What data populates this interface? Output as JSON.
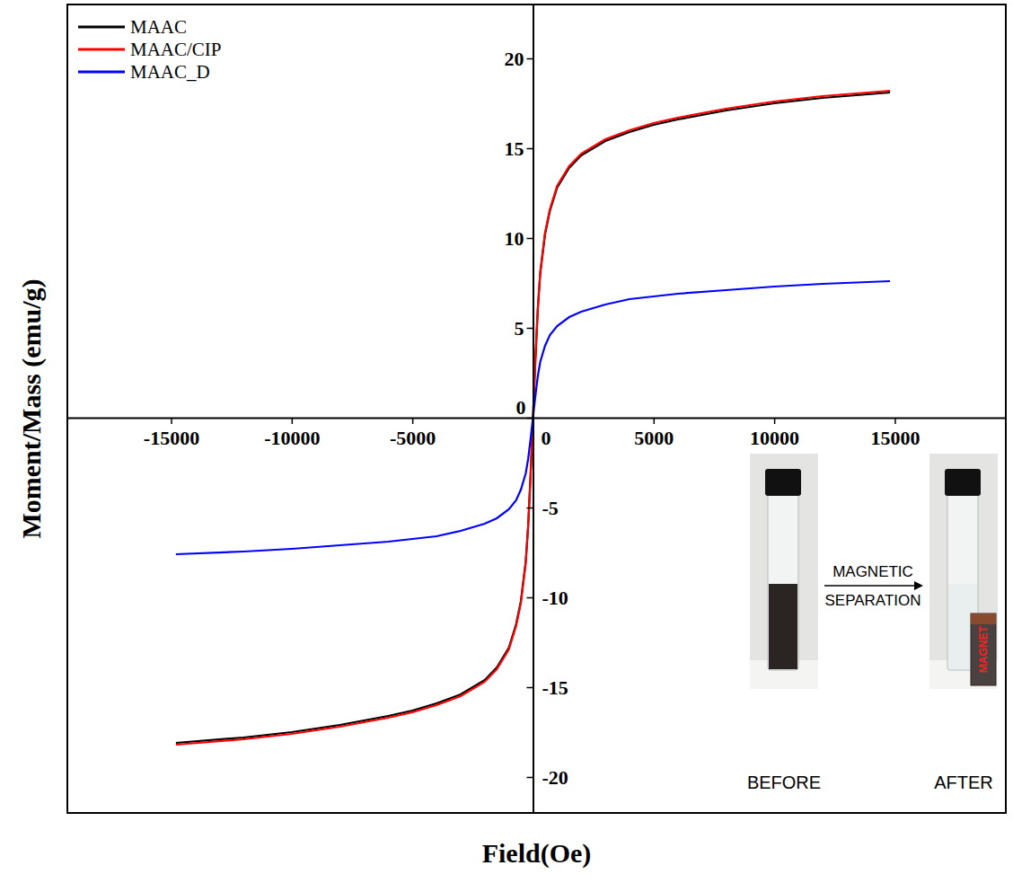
{
  "chart_data": {
    "type": "line",
    "x_label": "Field(Oe)",
    "y_label": "Moment/Mass (emu/g)",
    "x": [
      -14800,
      -12000,
      -10000,
      -8000,
      -6000,
      -5000,
      -4000,
      -3000,
      -2000,
      -1500,
      -1000,
      -700,
      -500,
      -300,
      -200,
      -100,
      0,
      100,
      200,
      300,
      500,
      700,
      1000,
      1500,
      2000,
      3000,
      4000,
      5000,
      6000,
      8000,
      10000,
      12000,
      14800
    ],
    "series": [
      {
        "name": "MAAC",
        "color": "#000000",
        "values": [
          -18.1,
          -17.8,
          -17.5,
          -17.1,
          -16.6,
          -16.3,
          -15.9,
          -15.4,
          -14.6,
          -13.9,
          -12.8,
          -11.5,
          -10.2,
          -8.0,
          -6.0,
          -3.2,
          0,
          3.2,
          6.0,
          8.0,
          10.2,
          11.5,
          12.8,
          13.9,
          14.6,
          15.4,
          15.9,
          16.3,
          16.6,
          17.1,
          17.5,
          17.8,
          18.1
        ]
      },
      {
        "name": "MAAC/CIP",
        "color": "#ff0000",
        "values": [
          -18.2,
          -17.9,
          -17.6,
          -17.2,
          -16.7,
          -16.4,
          -16.0,
          -15.5,
          -14.7,
          -14.0,
          -12.9,
          -11.6,
          -10.3,
          -8.1,
          -6.1,
          -3.3,
          0,
          3.3,
          6.1,
          8.1,
          10.3,
          11.6,
          12.9,
          14.0,
          14.7,
          15.5,
          16.0,
          16.4,
          16.7,
          17.2,
          17.6,
          17.9,
          18.2
        ]
      },
      {
        "name": "MAAC_D",
        "color": "#0000ff",
        "values": [
          -7.6,
          -7.45,
          -7.3,
          -7.1,
          -6.9,
          -6.75,
          -6.6,
          -6.3,
          -5.9,
          -5.6,
          -5.1,
          -4.6,
          -4.0,
          -3.1,
          -2.3,
          -1.2,
          0,
          1.2,
          2.3,
          3.1,
          4.0,
          4.6,
          5.1,
          5.6,
          5.9,
          6.3,
          6.6,
          6.75,
          6.9,
          7.1,
          7.3,
          7.45,
          7.6
        ]
      }
    ],
    "xlim": [
      -19300,
      19600
    ],
    "ylim": [
      -22,
      23
    ],
    "xticks": [
      -15000,
      -10000,
      -5000,
      0,
      5000,
      10000,
      15000
    ],
    "yticks": [
      -20,
      -15,
      -10,
      -5,
      0,
      5,
      10,
      15,
      20
    ],
    "grid": false,
    "legend": "upper left",
    "annotations": [
      "BEFORE",
      "MAGNETIC",
      "SEPARATION",
      "AFTER",
      "MAGNET"
    ]
  }
}
